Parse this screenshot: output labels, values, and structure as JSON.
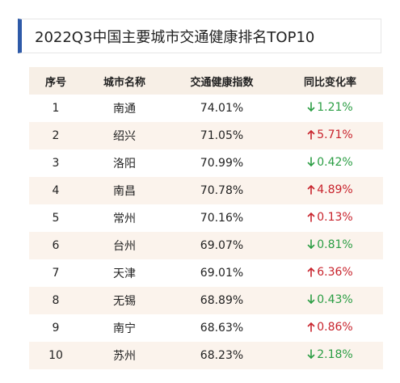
{
  "title": "2022Q3中国主要城市交通健康排名TOP10",
  "columns": {
    "rank": "序号",
    "city": "城市名称",
    "index": "交通健康指数",
    "change": "同比变化率"
  },
  "colors": {
    "accent": "#2e5aa8",
    "header_bg": "#f7efe6",
    "stripe_bg": "#fbf3ec",
    "up": "#c8232c",
    "down": "#2a9d43"
  },
  "rows": [
    {
      "rank": "1",
      "city": "南通",
      "index": "74.01%",
      "direction": "down",
      "icon": "arrow-down-icon",
      "change": "1.21%"
    },
    {
      "rank": "2",
      "city": "绍兴",
      "index": "71.05%",
      "direction": "up",
      "icon": "arrow-up-icon",
      "change": "5.71%"
    },
    {
      "rank": "3",
      "city": "洛阳",
      "index": "70.99%",
      "direction": "down",
      "icon": "arrow-down-icon",
      "change": "0.42%"
    },
    {
      "rank": "4",
      "city": "南昌",
      "index": "70.78%",
      "direction": "up",
      "icon": "arrow-up-icon",
      "change": "4.89%"
    },
    {
      "rank": "5",
      "city": "常州",
      "index": "70.16%",
      "direction": "up",
      "icon": "arrow-up-icon",
      "change": "0.13%"
    },
    {
      "rank": "6",
      "city": "台州",
      "index": "69.07%",
      "direction": "down",
      "icon": "arrow-down-icon",
      "change": "0.81%"
    },
    {
      "rank": "7",
      "city": "天津",
      "index": "69.01%",
      "direction": "up",
      "icon": "arrow-up-icon",
      "change": "6.36%"
    },
    {
      "rank": "8",
      "city": "无锡",
      "index": "68.89%",
      "direction": "down",
      "icon": "arrow-down-icon",
      "change": "0.43%"
    },
    {
      "rank": "9",
      "city": "南宁",
      "index": "68.63%",
      "direction": "up",
      "icon": "arrow-up-icon",
      "change": "0.86%"
    },
    {
      "rank": "10",
      "city": "苏州",
      "index": "68.23%",
      "direction": "down",
      "icon": "arrow-down-icon",
      "change": "2.18%"
    }
  ]
}
